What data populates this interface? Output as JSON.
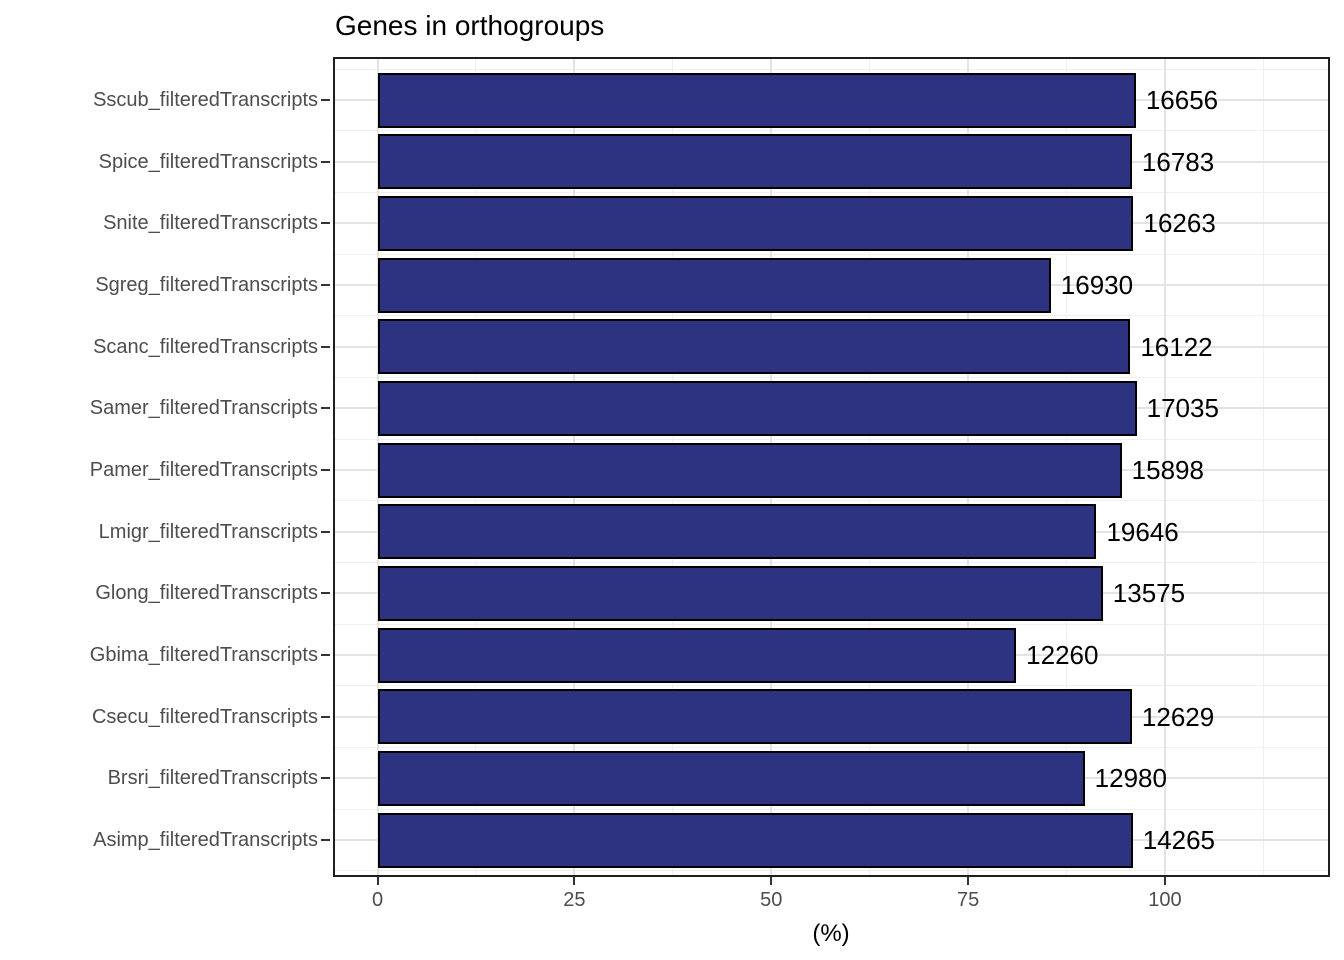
{
  "chart_data": {
    "type": "bar",
    "orientation": "horizontal",
    "title": "Genes in orthogroups",
    "xlabel": "(%)",
    "ylabel": "",
    "categories": [
      "Sscub_filteredTranscripts",
      "Spice_filteredTranscripts",
      "Snite_filteredTranscripts",
      "Sgreg_filteredTranscripts",
      "Scanc_filteredTranscripts",
      "Samer_filteredTranscripts",
      "Pamer_filteredTranscripts",
      "Lmigr_filteredTranscripts",
      "Glong_filteredTranscripts",
      "Gbima_filteredTranscripts",
      "Csecu_filteredTranscripts",
      "Brsri_filteredTranscripts",
      "Asimp_filteredTranscripts"
    ],
    "values": [
      96.3,
      95.8,
      96.0,
      85.5,
      95.6,
      96.4,
      94.5,
      91.3,
      92.1,
      81.1,
      95.8,
      89.8,
      95.9
    ],
    "bar_labels": [
      "16656",
      "16783",
      "16263",
      "16930",
      "16122",
      "17035",
      "15898",
      "19646",
      "13575",
      "12260",
      "12629",
      "12980",
      "14265"
    ],
    "xticks": [
      0,
      25,
      50,
      75,
      100
    ],
    "xtick_labels": [
      "0",
      "25",
      "50",
      "75",
      "100"
    ],
    "xminor": [
      12.5,
      37.5,
      62.5,
      87.5,
      112.5
    ],
    "xlim": [
      -5.4,
      120.7
    ],
    "grid": true,
    "legend": false,
    "colors": {
      "bar_fill": "#2d3380",
      "bar_border": "#000000",
      "axis_text": "#4d4d4d",
      "title_text": "#000000",
      "grid_major": "#e3e3e3",
      "grid_minor": "#f0f0f0",
      "panel_border": "#1f1f1f",
      "tick_mark": "#333333"
    }
  }
}
